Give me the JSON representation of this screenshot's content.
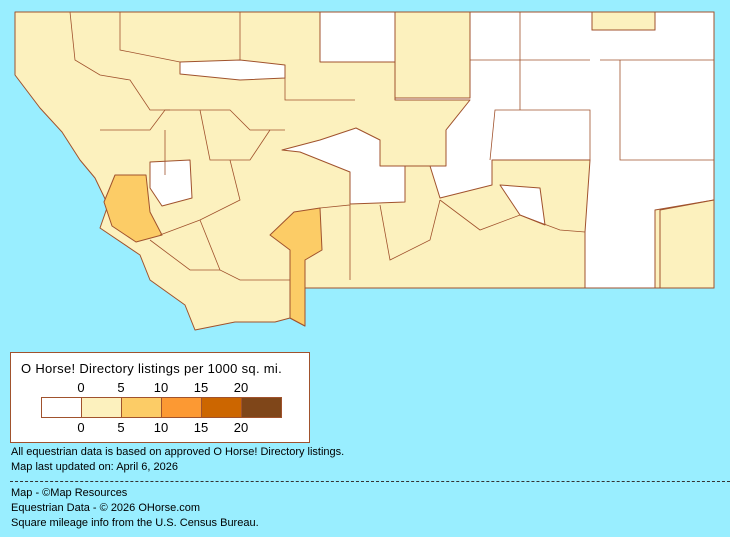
{
  "map": {
    "region": "Montana counties",
    "colors": {
      "background": "#99EEFF",
      "border": "#A0522D",
      "class_0": "#FFFFFF",
      "class_1": "#FCF1BE",
      "class_2": "#FCCC66",
      "class_3": "#FC9933",
      "class_4": "#CC6600",
      "class_5": "#7F4619"
    }
  },
  "legend": {
    "title": "O Horse! Directory listings per 1000 sq. mi.",
    "top_ticks": [
      "0",
      "5",
      "10",
      "15",
      "20"
    ],
    "bottom_ticks": [
      "0",
      "5",
      "10",
      "15",
      "20"
    ],
    "swatches": [
      "#FFFFFF",
      "#FCF1BE",
      "#FCCC66",
      "#FC9933",
      "#CC6600",
      "#7F4619"
    ]
  },
  "notes": {
    "data_basis": "All equestrian data is based on approved O Horse! Directory listings.",
    "updated": "Map last updated on: April 6, 2026"
  },
  "credits": {
    "map": "Map - ©Map Resources",
    "data": "Equestrian Data - © 2026 OHorse.com",
    "census": "Square mileage info from the U.S. Census Bureau."
  }
}
